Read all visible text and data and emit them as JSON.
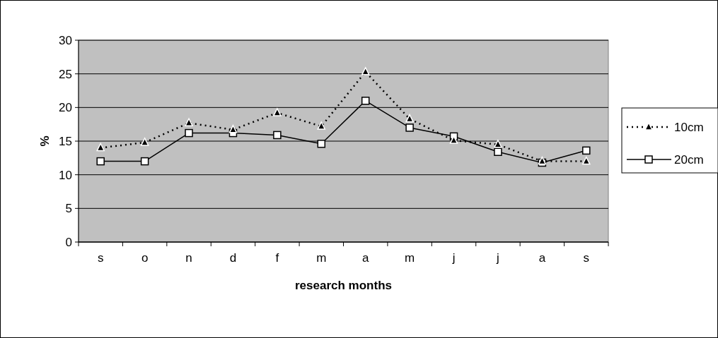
{
  "chart_data": {
    "type": "line",
    "xlabel": "research months",
    "ylabel": "%",
    "categories": [
      "s",
      "o",
      "n",
      "d",
      "f",
      "m",
      "a",
      "m",
      "j",
      "j",
      "a",
      "s"
    ],
    "series": [
      {
        "name": "10cm",
        "color": "#000000",
        "marker": "triangle",
        "line_style": "dotted",
        "values": [
          14,
          14.8,
          17.7,
          16.7,
          19.2,
          17.2,
          25.3,
          18.3,
          15.1,
          14.5,
          12,
          12
        ]
      },
      {
        "name": "20cm",
        "color": "#000000",
        "marker": "square",
        "line_style": "solid",
        "values": [
          12,
          12,
          16.2,
          16.2,
          15.9,
          14.6,
          21,
          17,
          15.7,
          13.4,
          11.8,
          13.6
        ]
      }
    ],
    "ylim": [
      0,
      30
    ],
    "yticks": [
      0,
      5,
      10,
      15,
      20,
      25,
      30
    ],
    "grid": "y",
    "legend": "right"
  }
}
